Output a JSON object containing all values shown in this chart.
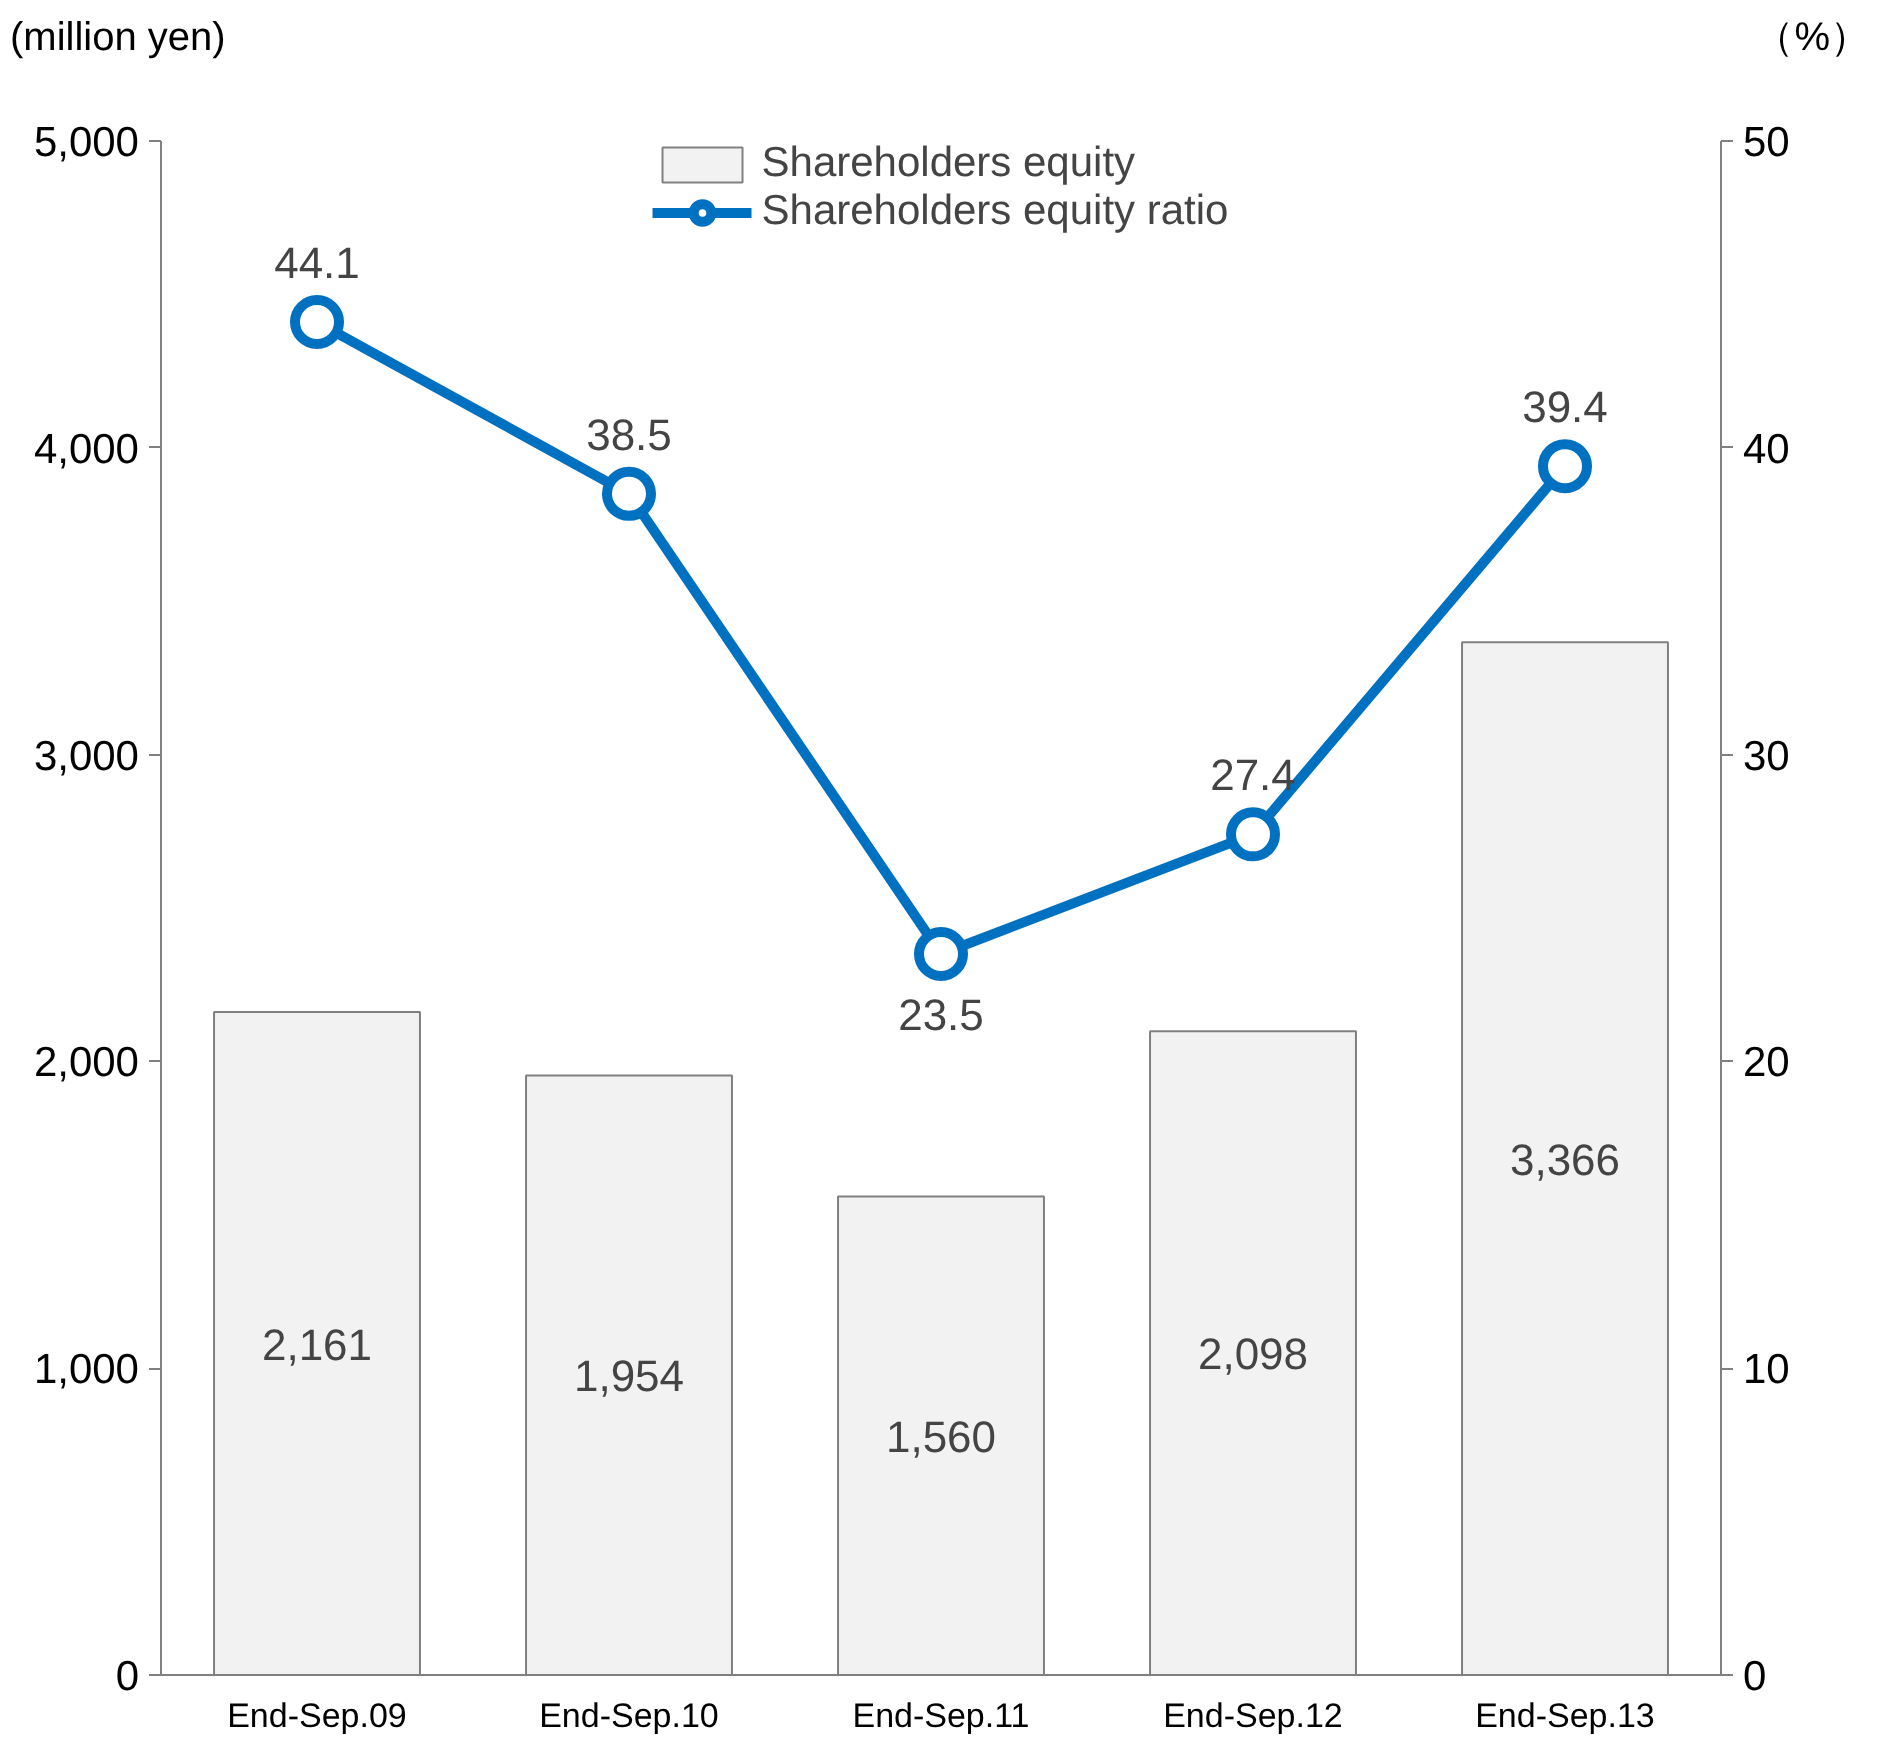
{
  "chart_data": {
    "type": "bar",
    "categories": [
      "End-Sep.09",
      "End-Sep.10",
      "End-Sep.11",
      "End-Sep.12",
      "End-Sep.13"
    ],
    "ylabel": "(million yen)",
    "y2label": "（%）",
    "series": [
      {
        "name": "Shareholders equity",
        "color": "#f2f2f2",
        "values": [
          2161,
          1954,
          1560,
          2098,
          3366
        ],
        "value_labels": [
          "2,161",
          "1,954",
          "1,560",
          "2,098",
          "3,366"
        ]
      },
      {
        "name": "Shareholders equity ratio",
        "type": "line",
        "axis": "y2",
        "color": "#0070c0",
        "marker": "circle",
        "values": [
          44.1,
          38.5,
          23.5,
          27.4,
          39.4
        ],
        "value_labels": [
          "44.1",
          "38.5",
          "23.5",
          "27.4",
          "39.4"
        ]
      }
    ],
    "ylim": [
      0,
      5000
    ],
    "yticks": [
      0,
      {
        "value": 1000,
        "label": "1,000"
      },
      {
        "value": 2000,
        "label": "2,000"
      },
      {
        "value": 3000,
        "label": "3,000"
      },
      {
        "value": 4000,
        "label": "4,000"
      },
      {
        "value": 5000,
        "label": "5,000"
      }
    ],
    "y2lim": [
      0,
      50
    ],
    "y2ticks": [
      0,
      10,
      20,
      30,
      40,
      50
    ],
    "grid": false,
    "legend": "top"
  }
}
